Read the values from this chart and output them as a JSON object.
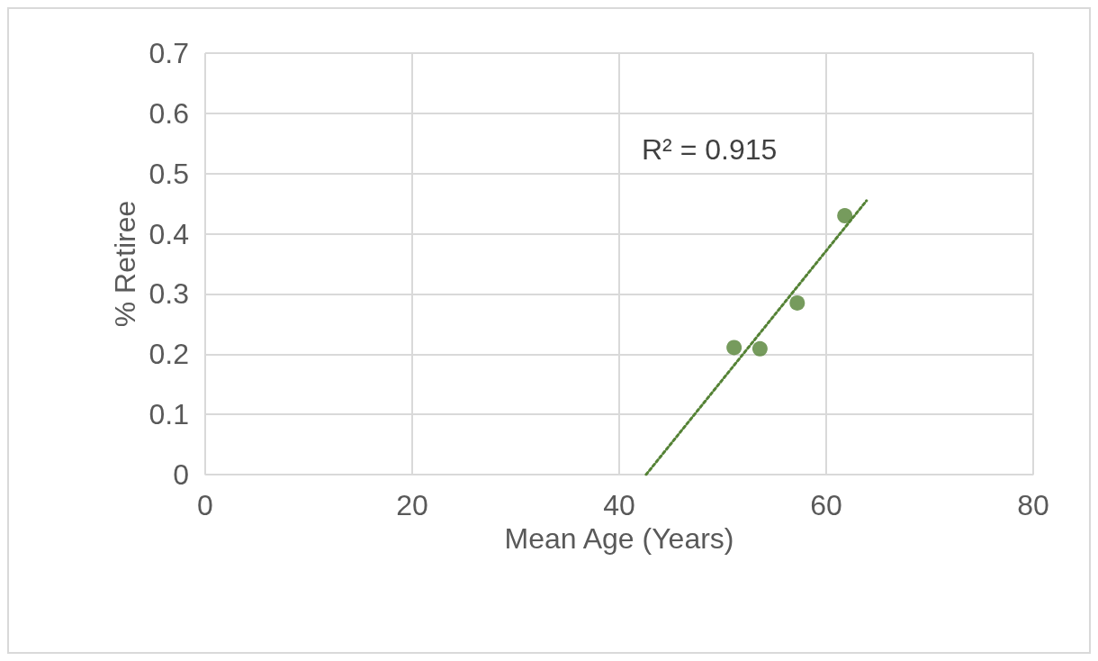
{
  "chart_data": {
    "type": "scatter",
    "xlabel": "Mean Age (Years)",
    "ylabel": "% Retiree",
    "annotations": [
      "R² = 0.915"
    ],
    "series": [
      {
        "color": "#548235",
        "x": [
          51.1,
          53.6,
          57.2,
          61.8
        ],
        "values": [
          0.211,
          0.209,
          0.285,
          0.43
        ],
        "marker": "circle"
      },
      {
        "type": "line",
        "color": "#548235",
        "x": [
          42.6,
          63.9
        ],
        "values": [
          0,
          0.455
        ],
        "marker": "none",
        "line_style": "dotted"
      }
    ],
    "xlim": [
      0,
      80
    ],
    "xticks": [
      0,
      20,
      40,
      60,
      80
    ],
    "ylim": [
      0,
      0.7
    ],
    "yticks": [
      0,
      0.1,
      0.2,
      0.3,
      0.4,
      0.5,
      0.6,
      0.7
    ],
    "grid": true
  }
}
